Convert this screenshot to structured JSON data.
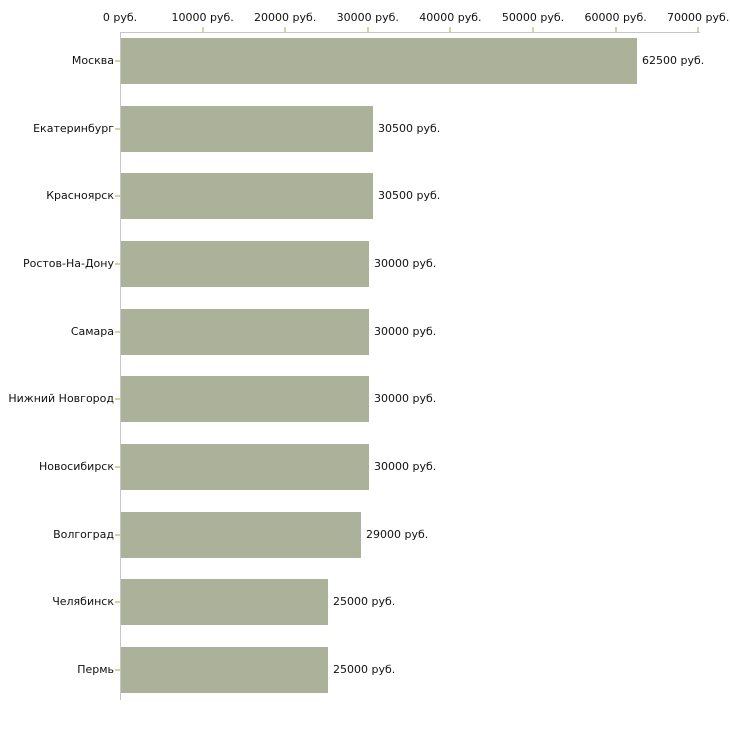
{
  "chart_data": {
    "type": "bar",
    "orientation": "horizontal",
    "title": "",
    "xlabel": "",
    "ylabel": "",
    "unit": "руб.",
    "categories": [
      "Москва",
      "Екатеринбург",
      "Красноярск",
      "Ростов-На-Дону",
      "Самара",
      "Нижний Новгород",
      "Новосибирск",
      "Волгоград",
      "Челябинск",
      "Пермь"
    ],
    "values": [
      62500,
      30500,
      30500,
      30000,
      30000,
      30000,
      30000,
      29000,
      25000,
      25000
    ],
    "value_labels": [
      "62500 руб.",
      "30500 руб.",
      "30500 руб.",
      "30000 руб.",
      "30000 руб.",
      "30000 руб.",
      "30000 руб.",
      "29000 руб.",
      "25000 руб.",
      "25000 руб."
    ],
    "x_axis": {
      "position": "top",
      "min": 0,
      "max": 70000,
      "tick_values": [
        0,
        10000,
        20000,
        30000,
        40000,
        50000,
        60000,
        70000
      ],
      "tick_labels": [
        "0 руб.",
        "10000 руб.",
        "20000 руб.",
        "30000 руб.",
        "40000 руб.",
        "50000 руб.",
        "60000 руб.",
        "70000 руб."
      ]
    },
    "grid": false,
    "legend": false,
    "colors": {
      "bar_fill": "#acb199",
      "axis_line": "#c6c6c6",
      "tick_mark": "#d6d2a6",
      "text": "#111111",
      "background": "#ffffff"
    }
  }
}
